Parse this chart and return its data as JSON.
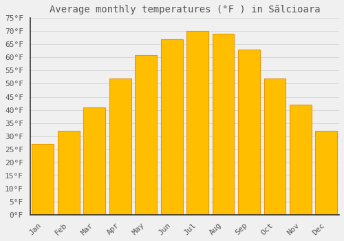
{
  "title": "Average monthly temperatures (°F ) in Sălcioara",
  "months": [
    "Jan",
    "Feb",
    "Mar",
    "Apr",
    "May",
    "Jun",
    "Jul",
    "Aug",
    "Sep",
    "Oct",
    "Nov",
    "Dec"
  ],
  "values": [
    27,
    32,
    41,
    52,
    61,
    67,
    70,
    69,
    63,
    52,
    42,
    32
  ],
  "bar_color": "#FFBF00",
  "bar_edge_color": "#E8960A",
  "background_color": "#F0F0F0",
  "grid_color": "#D8D8D8",
  "text_color": "#555555",
  "ylim": [
    0,
    75
  ],
  "yticks": [
    0,
    5,
    10,
    15,
    20,
    25,
    30,
    35,
    40,
    45,
    50,
    55,
    60,
    65,
    70,
    75
  ],
  "title_fontsize": 10,
  "tick_fontsize": 8
}
